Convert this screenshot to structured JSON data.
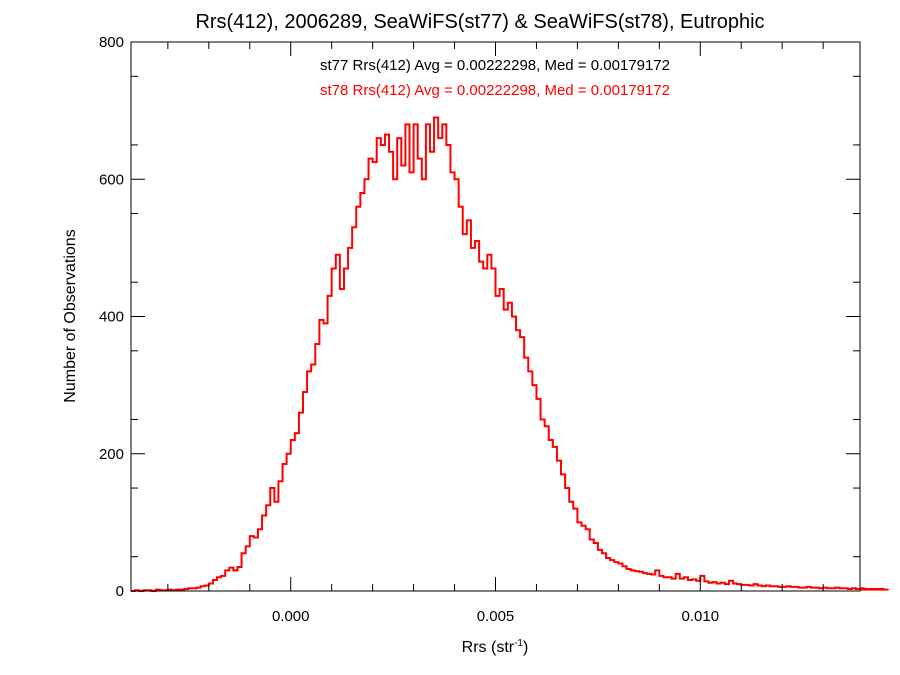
{
  "chart_data": {
    "type": "histogram",
    "title": "Rrs(412), 2006289, SeaWiFS(st77) & SeaWiFS(st78), Eutrophic",
    "xlabel": "Rrs (str",
    "xlabel_sup": "-1",
    "xlabel_close": ")",
    "ylabel": "Number of Observations",
    "xlim": [
      -0.0039,
      0.0139
    ],
    "ylim": [
      0,
      800
    ],
    "xticks": [
      {
        "value": 0.0,
        "label": "0.000"
      },
      {
        "value": 0.005,
        "label": "0.005"
      },
      {
        "value": 0.01,
        "label": "0.010"
      }
    ],
    "yticks": [
      {
        "value": 0,
        "label": "0"
      },
      {
        "value": 200,
        "label": "200"
      },
      {
        "value": 400,
        "label": "400"
      },
      {
        "value": 600,
        "label": "600"
      },
      {
        "value": 800,
        "label": "800"
      }
    ],
    "annotations": [
      {
        "text": "st77 Rrs(412) Avg = 0.00222298, Med = 0.00179172",
        "color": "#000000"
      },
      {
        "text": "st78 Rrs(412) Avg = 0.00222298, Med = 0.00179172",
        "color": "#ff0000"
      }
    ],
    "grid": false,
    "series": [
      {
        "color": "#ff0000",
        "bin_width": 0.0001,
        "x_start": -0.0039,
        "values": [
          0,
          1,
          0,
          1,
          1,
          0,
          2,
          1,
          1,
          2,
          1,
          2,
          2,
          3,
          4,
          4,
          5,
          7,
          8,
          11,
          16,
          20,
          22,
          30,
          34,
          30,
          35,
          55,
          65,
          80,
          78,
          90,
          110,
          125,
          150,
          130,
          160,
          185,
          200,
          220,
          230,
          260,
          290,
          320,
          330,
          360,
          395,
          390,
          430,
          470,
          490,
          440,
          470,
          500,
          530,
          560,
          580,
          600,
          630,
          625,
          660,
          650,
          665,
          640,
          600,
          660,
          620,
          680,
          610,
          680,
          630,
          600,
          680,
          640,
          690,
          660,
          680,
          650,
          610,
          600,
          560,
          520,
          540,
          500,
          510,
          480,
          470,
          490,
          470,
          430,
          440,
          410,
          420,
          400,
          380,
          370,
          340,
          320,
          300,
          280,
          250,
          240,
          220,
          210,
          190,
          170,
          150,
          130,
          120,
          100,
          95,
          90,
          75,
          70,
          60,
          55,
          48,
          45,
          42,
          40,
          36,
          32,
          30,
          29,
          28,
          26,
          25,
          24,
          30,
          22,
          20,
          20,
          18,
          25,
          18,
          20,
          16,
          17,
          15,
          22,
          14,
          12,
          13,
          11,
          12,
          10,
          15,
          11,
          10,
          9,
          9,
          8,
          10,
          8,
          7,
          8,
          7,
          7,
          6,
          6,
          7,
          6,
          6,
          5,
          5,
          6,
          5,
          5,
          4,
          5,
          4,
          4,
          5,
          4,
          4,
          3,
          4,
          3,
          3,
          4,
          3,
          3,
          3,
          2,
          3,
          2
        ]
      }
    ]
  }
}
